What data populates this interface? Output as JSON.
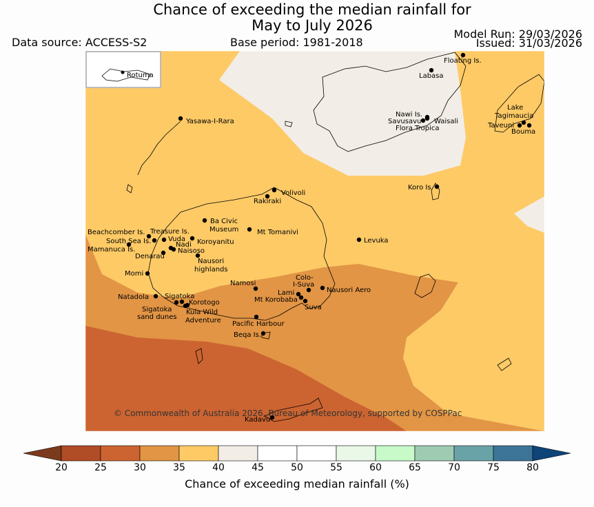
{
  "title": {
    "line1": "Chance of exceeding the median rainfall for",
    "line2": "May to July 2026"
  },
  "data_source": "Data source: ACCESS-S2",
  "base_period": "Base period: 1981-2018",
  "model_run": "Model Run: 29/03/2026",
  "issued": "Issued: 31/03/2026",
  "inset_label": "Rotuma",
  "copyright": "© Commonwealth of Australia 2026, Bureau of Meteorology, supported by COSPPac",
  "colorbar": {
    "title": "Chance of exceeding median rainfall (%)",
    "ticks": [
      "20",
      "25",
      "30",
      "35",
      "40",
      "45",
      "50",
      "55",
      "60",
      "65",
      "70",
      "75",
      "80"
    ],
    "colors": [
      "#7b3a1c",
      "#b04c26",
      "#cc6431",
      "#e29545",
      "#fdca66",
      "#f2ede6",
      "#ffffff",
      "#ffffff",
      "#eaf8e7",
      "#c7fac8",
      "#9fcbb3",
      "#6aa3a7",
      "#3c7598",
      "#0e4478"
    ]
  },
  "places": [
    "Floating Is.",
    "Labasa",
    "Yasawa-I-Rara",
    "Nawi Is.",
    "Savusavu",
    "Waisali",
    "Flora Tropica",
    "Lake",
    "Tagimaucia",
    "Taveuni",
    "Bouma",
    "Koro Is.",
    "Volivoli",
    "Rakiraki",
    "Ba Civic",
    "Museum",
    "Mt Tomanivi",
    "Beachcomber Is.",
    "Treasure Is.",
    "South Sea Is.",
    "Vuda",
    "Nadi",
    "Koroyanitu",
    "Mamanuca Is.",
    "Naisoso",
    "Denarau",
    "Nausori",
    "highlands",
    "Levuka",
    "Momi",
    "Namosi",
    "Colo-",
    "I-Suva",
    "Nausori Aero",
    "Natadola",
    "Sigatoka",
    "Lami",
    "Mt Korobaba",
    "Korotogo",
    "Suva",
    "Sigatoka",
    "sand dunes",
    "Kula Wild",
    "Adventure",
    "Pacific Harbour",
    "Beqa Is.",
    "Kadavu"
  ]
}
